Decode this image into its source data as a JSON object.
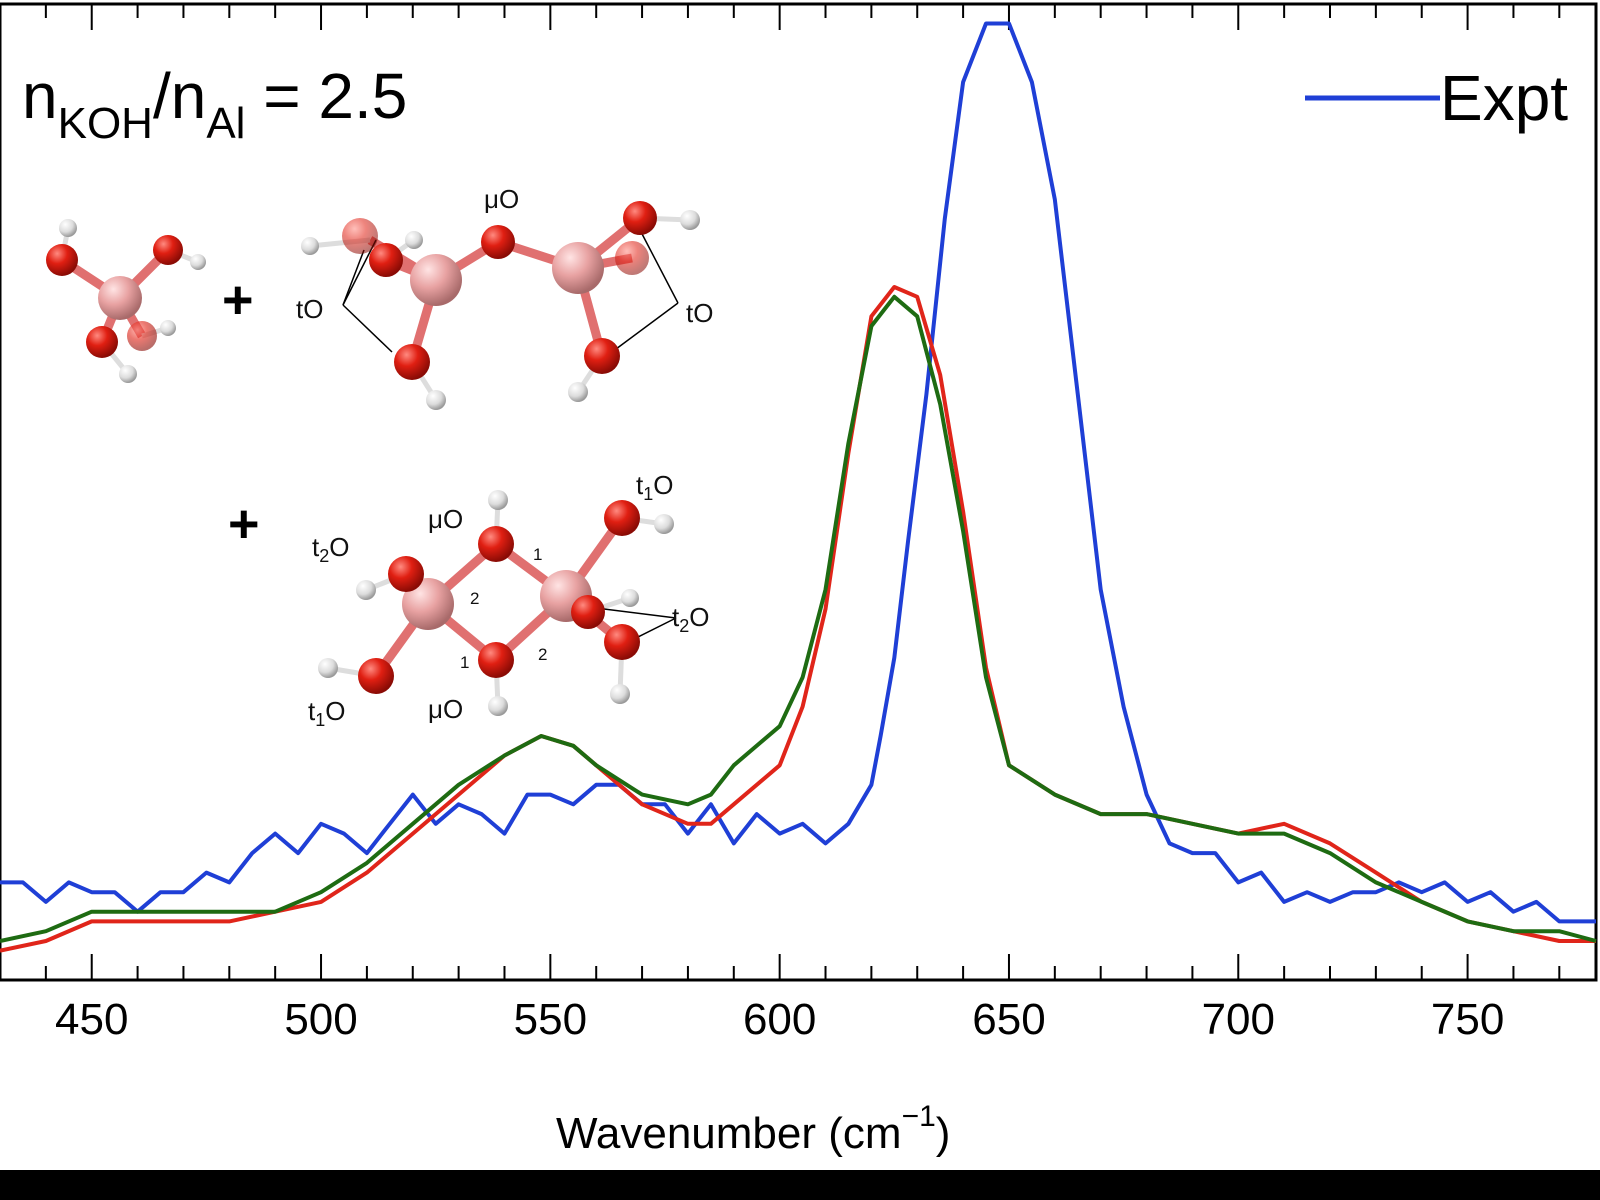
{
  "chart_data": {
    "type": "line",
    "title_parts": {
      "n1": "n",
      "sub1": "KOH",
      "slash": "/n",
      "sub2": "Al",
      "rest": " = 2.5"
    },
    "xlabel": {
      "main": "Wavenumber (cm",
      "sup": "−1",
      "close": ")"
    },
    "ylabel": "",
    "xlim": [
      430,
      778
    ],
    "ylim": [
      0,
      1
    ],
    "x_ticks": [
      450,
      500,
      550,
      600,
      650,
      700,
      750
    ],
    "grid": false,
    "legend": {
      "position": "top-right",
      "entries": [
        "Expt"
      ]
    },
    "series": [
      {
        "name": "Expt",
        "color": "#1f3fd6",
        "x": [
          430,
          435,
          440,
          445,
          450,
          455,
          460,
          465,
          470,
          475,
          480,
          485,
          490,
          495,
          500,
          505,
          510,
          515,
          520,
          525,
          530,
          535,
          540,
          545,
          550,
          555,
          560,
          565,
          570,
          575,
          580,
          585,
          590,
          595,
          600,
          605,
          610,
          615,
          620,
          622,
          625,
          628,
          632,
          636,
          640,
          645,
          650,
          655,
          660,
          665,
          670,
          675,
          680,
          685,
          690,
          695,
          700,
          705,
          710,
          715,
          720,
          725,
          730,
          735,
          740,
          745,
          750,
          755,
          760,
          765,
          770,
          778
        ],
        "y": [
          0.1,
          0.1,
          0.08,
          0.1,
          0.09,
          0.09,
          0.07,
          0.09,
          0.09,
          0.11,
          0.1,
          0.13,
          0.15,
          0.13,
          0.16,
          0.15,
          0.13,
          0.16,
          0.19,
          0.16,
          0.18,
          0.17,
          0.15,
          0.19,
          0.19,
          0.18,
          0.2,
          0.2,
          0.18,
          0.18,
          0.15,
          0.18,
          0.14,
          0.17,
          0.15,
          0.16,
          0.14,
          0.16,
          0.2,
          0.25,
          0.33,
          0.45,
          0.6,
          0.78,
          0.92,
          0.98,
          0.98,
          0.92,
          0.8,
          0.6,
          0.4,
          0.28,
          0.19,
          0.14,
          0.13,
          0.13,
          0.1,
          0.11,
          0.08,
          0.09,
          0.08,
          0.09,
          0.09,
          0.1,
          0.09,
          0.1,
          0.08,
          0.09,
          0.07,
          0.08,
          0.06,
          0.06
        ]
      },
      {
        "name": "",
        "color": "#e0251a",
        "x": [
          430,
          440,
          450,
          460,
          470,
          480,
          490,
          500,
          510,
          520,
          530,
          540,
          548,
          555,
          560,
          570,
          580,
          585,
          590,
          600,
          605,
          610,
          615,
          620,
          625,
          630,
          635,
          640,
          645,
          650,
          660,
          670,
          680,
          690,
          700,
          710,
          720,
          730,
          740,
          750,
          760,
          770,
          778
        ],
        "y": [
          0.03,
          0.04,
          0.06,
          0.06,
          0.06,
          0.06,
          0.07,
          0.08,
          0.11,
          0.15,
          0.19,
          0.23,
          0.25,
          0.24,
          0.22,
          0.18,
          0.16,
          0.16,
          0.18,
          0.22,
          0.28,
          0.38,
          0.54,
          0.68,
          0.71,
          0.7,
          0.62,
          0.48,
          0.32,
          0.22,
          0.19,
          0.17,
          0.17,
          0.16,
          0.15,
          0.16,
          0.14,
          0.11,
          0.08,
          0.06,
          0.05,
          0.04,
          0.04
        ]
      },
      {
        "name": "",
        "color": "#1e6b12",
        "x": [
          430,
          440,
          450,
          460,
          470,
          480,
          490,
          500,
          510,
          520,
          530,
          540,
          548,
          555,
          560,
          570,
          580,
          585,
          590,
          600,
          605,
          610,
          615,
          620,
          625,
          630,
          635,
          640,
          645,
          650,
          660,
          670,
          680,
          690,
          700,
          710,
          720,
          730,
          740,
          750,
          760,
          770,
          778
        ],
        "y": [
          0.04,
          0.05,
          0.07,
          0.07,
          0.07,
          0.07,
          0.07,
          0.09,
          0.12,
          0.16,
          0.2,
          0.23,
          0.25,
          0.24,
          0.22,
          0.19,
          0.18,
          0.19,
          0.22,
          0.26,
          0.31,
          0.4,
          0.55,
          0.67,
          0.7,
          0.68,
          0.59,
          0.46,
          0.31,
          0.22,
          0.19,
          0.17,
          0.17,
          0.16,
          0.15,
          0.15,
          0.13,
          0.1,
          0.08,
          0.06,
          0.05,
          0.05,
          0.04
        ]
      }
    ]
  },
  "molecules": {
    "labels": {
      "muO": "μO",
      "tO": "tO",
      "t1O": "t1O",
      "t2O": "t2O"
    },
    "plus": "+",
    "ring_numbers": [
      "1",
      "2"
    ]
  }
}
